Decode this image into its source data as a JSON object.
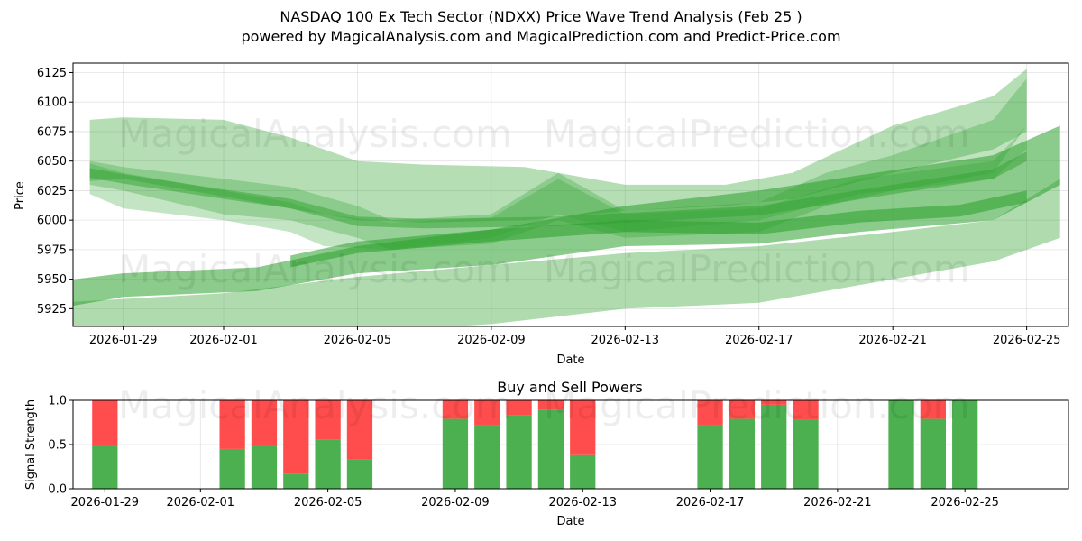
{
  "title": "NASDAQ 100 Ex Tech Sector (NDXX) Price Wave Trend Analysis (Feb 25 )",
  "subtitle": "powered by MagicalAnalysis.com and MagicalPrediction.com and Predict-Price.com",
  "watermarks": [
    "MagicalAnalysis.com",
    "MagicalPrediction.com"
  ],
  "colors": {
    "band": "#2ca02c",
    "buy": "#4caf50",
    "sell": "#ff4d4d"
  },
  "chart_data": [
    {
      "type": "area",
      "title": "",
      "xlabel": "Date",
      "ylabel": "Price",
      "ylim": [
        5910,
        6133
      ],
      "xlim": [
        "2026-01-27T12:00",
        "2026-02-26T06:00"
      ],
      "grid": true,
      "x_ticks": [
        "2026-01-29",
        "2026-02-01",
        "2026-02-05",
        "2026-02-09",
        "2026-02-13",
        "2026-02-17",
        "2026-02-21",
        "2026-02-25"
      ],
      "y_ticks": [
        5925,
        5950,
        5975,
        6000,
        6025,
        6050,
        6075,
        6100,
        6125
      ],
      "bands": [
        {
          "name": "upper-envelope",
          "x": [
            "2026-01-28",
            "2026-01-29",
            "2026-02-01",
            "2026-02-03",
            "2026-02-05",
            "2026-02-07",
            "2026-02-10",
            "2026-02-13",
            "2026-02-16",
            "2026-02-18",
            "2026-02-21",
            "2026-02-24",
            "2026-02-25"
          ],
          "low": [
            6033,
            6035,
            6020,
            6010,
            6000,
            5998,
            6000,
            6008,
            6012,
            6018,
            6040,
            6060,
            6075
          ],
          "high": [
            6085,
            6087,
            6085,
            6070,
            6050,
            6047,
            6045,
            6030,
            6030,
            6040,
            6080,
            6105,
            6128
          ],
          "opacity": 0.35
        },
        {
          "name": "wave-cluster-1",
          "x": [
            "2026-01-28",
            "2026-01-29",
            "2026-02-01",
            "2026-02-03",
            "2026-02-05",
            "2026-02-06",
            "2026-02-09",
            "2026-02-11",
            "2026-02-13",
            "2026-02-17",
            "2026-02-19",
            "2026-02-21",
            "2026-02-24",
            "2026-02-25"
          ],
          "low": [
            6030,
            6025,
            6005,
            6000,
            5985,
            5975,
            5980,
            6000,
            5985,
            5990,
            6012,
            6025,
            6040,
            6080
          ],
          "high": [
            6050,
            6045,
            6035,
            6028,
            6012,
            6000,
            6005,
            6040,
            6008,
            6015,
            6040,
            6055,
            6085,
            6120
          ],
          "opacity": 0.3
        },
        {
          "name": "wave-cluster-2",
          "x": [
            "2026-01-28",
            "2026-01-29",
            "2026-02-01",
            "2026-02-03",
            "2026-02-04",
            "2026-02-06",
            "2026-02-09",
            "2026-02-11",
            "2026-02-13",
            "2026-02-17",
            "2026-02-20",
            "2026-02-24",
            "2026-02-25"
          ],
          "low": [
            6022,
            6010,
            6000,
            5990,
            5978,
            5975,
            5985,
            6005,
            5990,
            6000,
            6022,
            6035,
            6060
          ],
          "high": [
            6048,
            6040,
            6025,
            6015,
            6005,
            5998,
            6002,
            6035,
            6005,
            6010,
            6035,
            6050,
            6080
          ],
          "opacity": 0.28
        },
        {
          "name": "mid-band",
          "x": [
            "2026-01-27",
            "2026-01-29",
            "2026-02-02",
            "2026-02-05",
            "2026-02-09",
            "2026-02-13",
            "2026-02-17",
            "2026-02-20",
            "2026-02-24",
            "2026-02-26"
          ],
          "low": [
            5925,
            5935,
            5940,
            5955,
            5962,
            5978,
            5980,
            5990,
            6000,
            6030
          ],
          "high": [
            5948,
            5955,
            5960,
            5978,
            5992,
            6012,
            6025,
            6038,
            6055,
            6080
          ],
          "opacity": 0.55
        },
        {
          "name": "lower-band",
          "x": [
            "2026-01-27",
            "2026-02-01",
            "2026-02-05",
            "2026-02-09",
            "2026-02-13",
            "2026-02-17",
            "2026-02-21",
            "2026-02-24",
            "2026-02-26"
          ],
          "low": [
            5890,
            5895,
            5905,
            5912,
            5925,
            5930,
            5950,
            5965,
            5985
          ],
          "high": [
            5930,
            5938,
            5952,
            5962,
            5972,
            5978,
            5990,
            6000,
            6035
          ],
          "opacity": 0.38
        },
        {
          "name": "core-line-upper",
          "x": [
            "2026-01-28",
            "2026-01-29",
            "2026-02-01",
            "2026-02-03",
            "2026-02-05",
            "2026-02-07",
            "2026-02-11",
            "2026-02-13",
            "2026-02-17",
            "2026-02-21",
            "2026-02-24",
            "2026-02-25"
          ],
          "low": [
            6036,
            6031,
            6018,
            6010,
            5995,
            5993,
            5995,
            5998,
            6004,
            6022,
            6035,
            6050
          ],
          "high": [
            6044,
            6039,
            6026,
            6018,
            6003,
            6001,
            6003,
            6006,
            6012,
            6030,
            6043,
            6058
          ],
          "opacity": 0.45
        },
        {
          "name": "core-line-lower",
          "x": [
            "2026-02-03",
            "2026-02-05",
            "2026-02-09",
            "2026-02-13",
            "2026-02-17",
            "2026-02-20",
            "2026-02-23",
            "2026-02-25"
          ],
          "low": [
            5960,
            5972,
            5982,
            5990,
            5988,
            5998,
            6003,
            6015
          ],
          "high": [
            5970,
            5982,
            5992,
            6000,
            5998,
            6008,
            6013,
            6025
          ],
          "opacity": 0.55
        }
      ]
    },
    {
      "type": "bar",
      "title": "Buy and Sell Powers",
      "xlabel": "Date",
      "ylabel": "Signal Strength",
      "ylim": [
        0,
        1
      ],
      "xlim": [
        "2026-01-28T00:00",
        "2026-02-28T06:00"
      ],
      "grid": true,
      "x_ticks": [
        "2026-01-29",
        "2026-02-01",
        "2026-02-05",
        "2026-02-09",
        "2026-02-13",
        "2026-02-17",
        "2026-02-21",
        "2026-02-25"
      ],
      "y_ticks": [
        "0.0",
        "0.5",
        "1.0"
      ],
      "series": [
        {
          "name": "Buy",
          "color": "#4caf50"
        },
        {
          "name": "Sell",
          "color": "#ff4d4d"
        }
      ],
      "categories": [
        "2026-01-29",
        "2026-02-02",
        "2026-02-03",
        "2026-02-04",
        "2026-02-05",
        "2026-02-06",
        "2026-02-09",
        "2026-02-10",
        "2026-02-11",
        "2026-02-12",
        "2026-02-13",
        "2026-02-17",
        "2026-02-18",
        "2026-02-19",
        "2026-02-20",
        "2026-02-23",
        "2026-02-24",
        "2026-02-25"
      ],
      "buy": [
        0.5,
        0.45,
        0.5,
        0.17,
        0.56,
        0.33,
        0.79,
        0.72,
        0.83,
        0.89,
        0.38,
        0.72,
        0.79,
        0.95,
        0.78,
        1.0,
        0.79,
        1.0
      ]
    }
  ]
}
